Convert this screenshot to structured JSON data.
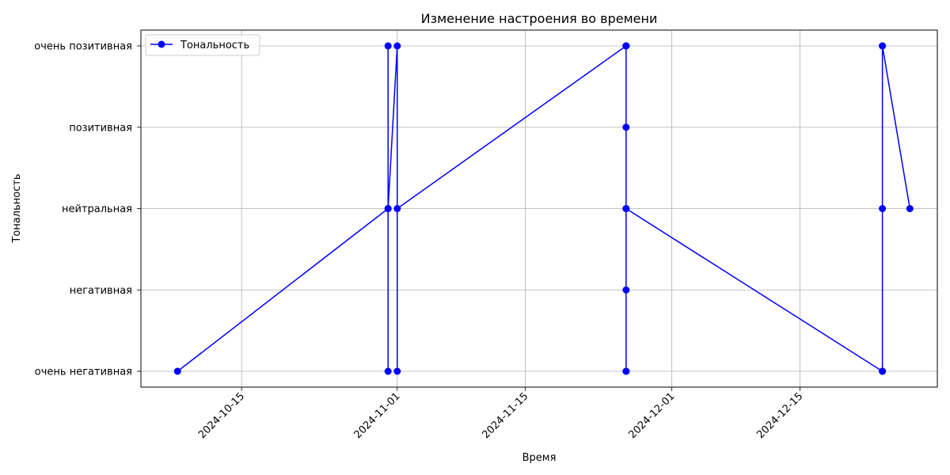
{
  "chart_data": {
    "type": "line",
    "title": "Изменение настроения во времени",
    "xlabel": "Время",
    "ylabel": "Тональность",
    "x_ticks": [
      "2024-10-15",
      "2024-11-01",
      "2024-11-15",
      "2024-12-01",
      "2024-12-15"
    ],
    "y_categories": [
      "очень негативная",
      "негативная",
      "нейтральная",
      "позитивная",
      "очень позитивная"
    ],
    "xlim": [
      "2024-10-04",
      "2024-12-30"
    ],
    "grid": true,
    "legend_position": "top-left",
    "color": "#0000ff",
    "series": [
      {
        "name": "Тональность",
        "points": [
          {
            "x": "2024-10-08",
            "y": "очень негативная"
          },
          {
            "x": "2024-10-31",
            "y": "нейтральная"
          },
          {
            "x": "2024-10-31",
            "y": "очень позитивная"
          },
          {
            "x": "2024-10-31",
            "y": "очень негативная"
          },
          {
            "x": "2024-10-31",
            "y": "нейтральная"
          },
          {
            "x": "2024-11-01",
            "y": "очень позитивная"
          },
          {
            "x": "2024-11-01",
            "y": "очень негативная"
          },
          {
            "x": "2024-11-01",
            "y": "нейтральная"
          },
          {
            "x": "2024-11-26",
            "y": "очень позитивная"
          },
          {
            "x": "2024-11-26",
            "y": "нейтральная"
          },
          {
            "x": "2024-11-26",
            "y": "позитивная"
          },
          {
            "x": "2024-11-26",
            "y": "очень негативная"
          },
          {
            "x": "2024-11-26",
            "y": "очень позитивная"
          },
          {
            "x": "2024-11-26",
            "y": "негативная"
          },
          {
            "x": "2024-11-26",
            "y": "очень негативная"
          },
          {
            "x": "2024-11-26",
            "y": "очень позитивная"
          },
          {
            "x": "2024-11-26",
            "y": "нейтральная"
          },
          {
            "x": "2024-12-24",
            "y": "очень негативная"
          },
          {
            "x": "2024-12-24",
            "y": "нейтральная"
          },
          {
            "x": "2024-12-24",
            "y": "очень негативная"
          },
          {
            "x": "2024-12-24",
            "y": "очень позитивная"
          },
          {
            "x": "2024-12-24",
            "y": "очень позитивная"
          },
          {
            "x": "2024-12-27",
            "y": "нейтральная"
          }
        ]
      }
    ]
  }
}
